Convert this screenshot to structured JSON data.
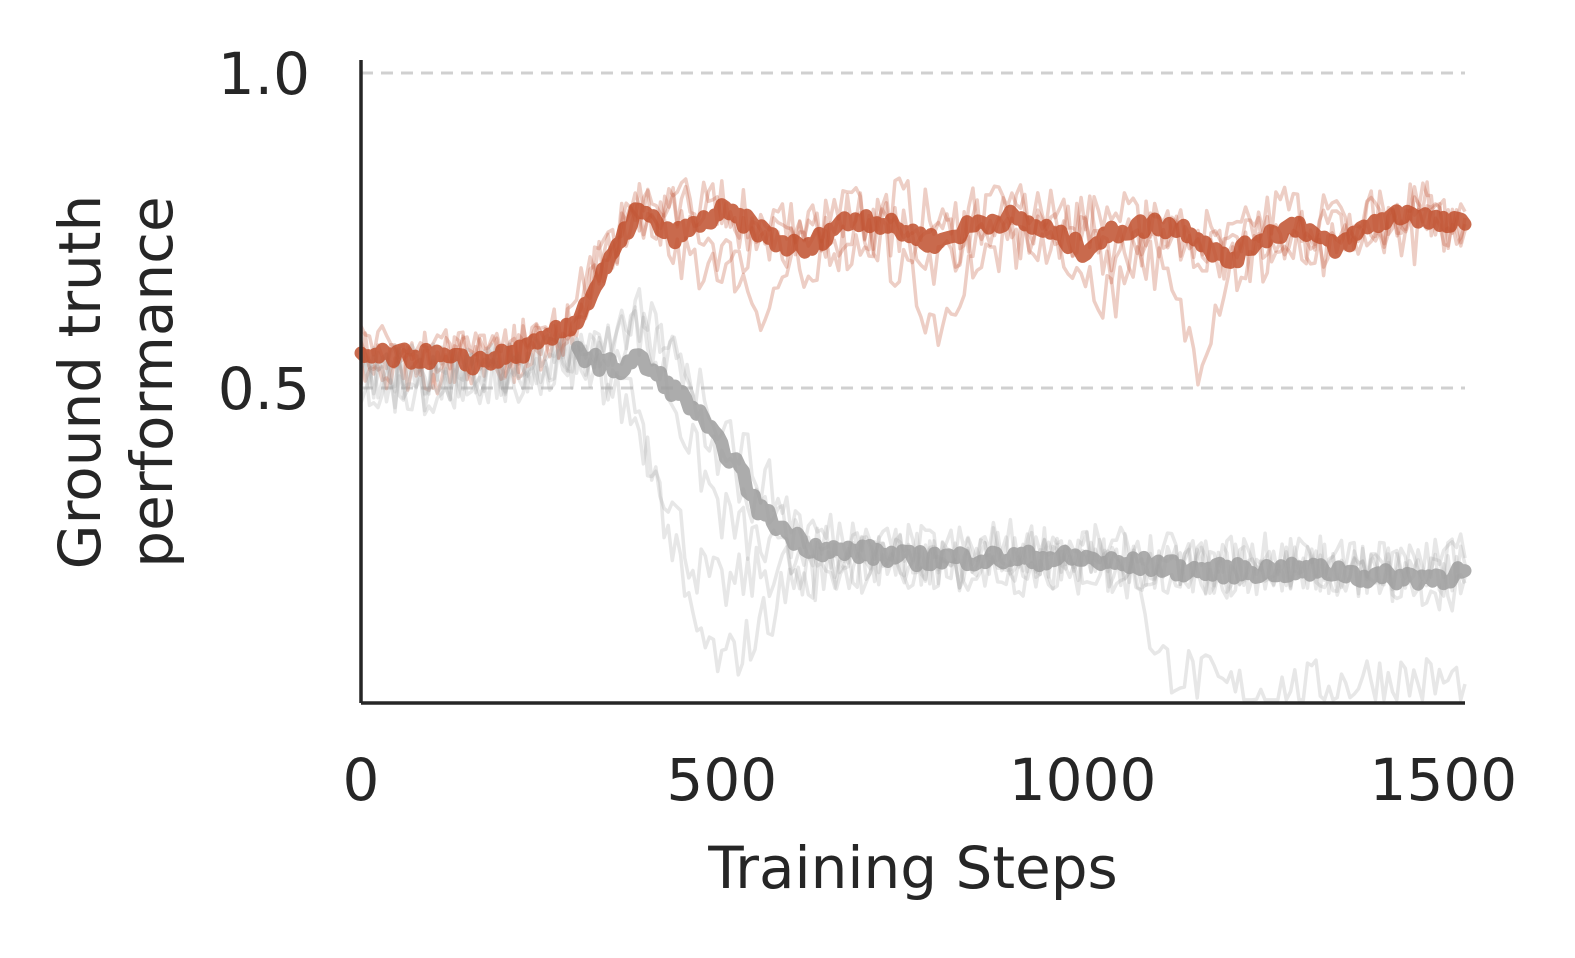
{
  "chart_data": {
    "type": "line",
    "title": "",
    "xlabel": "Training Steps",
    "ylabel_lines": [
      "Ground truth",
      "performance"
    ],
    "xlim": [
      0,
      1530
    ],
    "ylim": [
      0.0,
      1.0
    ],
    "xticks": [
      0,
      500,
      1000,
      1500
    ],
    "xtick_labels": [
      "0",
      "500",
      "1000",
      "1500"
    ],
    "yticks": [
      0.5,
      1.0
    ],
    "ytick_labels": [
      "0.5",
      "1.0"
    ],
    "grid": "horizontal dashed at y ticks",
    "legend": "none",
    "series": [
      {
        "color": "#c0502e",
        "role": "mean",
        "points": [
          [
            0,
            0.55
          ],
          [
            50,
            0.55
          ],
          [
            100,
            0.55
          ],
          [
            150,
            0.54
          ],
          [
            200,
            0.55
          ],
          [
            250,
            0.57
          ],
          [
            300,
            0.61
          ],
          [
            330,
            0.67
          ],
          [
            360,
            0.73
          ],
          [
            380,
            0.78
          ],
          [
            400,
            0.77
          ],
          [
            430,
            0.74
          ],
          [
            470,
            0.76
          ],
          [
            500,
            0.78
          ],
          [
            540,
            0.76
          ],
          [
            580,
            0.73
          ],
          [
            620,
            0.72
          ],
          [
            660,
            0.76
          ],
          [
            700,
            0.77
          ],
          [
            750,
            0.75
          ],
          [
            800,
            0.73
          ],
          [
            850,
            0.76
          ],
          [
            900,
            0.77
          ],
          [
            950,
            0.75
          ],
          [
            1000,
            0.72
          ],
          [
            1050,
            0.75
          ],
          [
            1100,
            0.76
          ],
          [
            1150,
            0.75
          ],
          [
            1200,
            0.7
          ],
          [
            1250,
            0.74
          ],
          [
            1300,
            0.76
          ],
          [
            1350,
            0.72
          ],
          [
            1400,
            0.76
          ],
          [
            1450,
            0.78
          ],
          [
            1500,
            0.76
          ],
          [
            1530,
            0.76
          ]
        ]
      },
      {
        "color": "#9e9e9e",
        "role": "mean",
        "points": [
          [
            300,
            0.56
          ],
          [
            330,
            0.54
          ],
          [
            360,
            0.53
          ],
          [
            380,
            0.55
          ],
          [
            400,
            0.53
          ],
          [
            430,
            0.5
          ],
          [
            460,
            0.47
          ],
          [
            490,
            0.42
          ],
          [
            520,
            0.38
          ],
          [
            550,
            0.31
          ],
          [
            590,
            0.27
          ],
          [
            620,
            0.25
          ],
          [
            660,
            0.24
          ],
          [
            700,
            0.24
          ],
          [
            750,
            0.23
          ],
          [
            800,
            0.23
          ],
          [
            850,
            0.23
          ],
          [
            900,
            0.23
          ],
          [
            950,
            0.23
          ],
          [
            1000,
            0.23
          ],
          [
            1050,
            0.22
          ],
          [
            1100,
            0.22
          ],
          [
            1150,
            0.21
          ],
          [
            1200,
            0.21
          ],
          [
            1250,
            0.21
          ],
          [
            1300,
            0.21
          ],
          [
            1350,
            0.21
          ],
          [
            1400,
            0.2
          ],
          [
            1450,
            0.2
          ],
          [
            1500,
            0.2
          ],
          [
            1530,
            0.21
          ]
        ]
      }
    ],
    "runs": [
      {
        "color": "#c0502e",
        "points": [
          [
            0,
            0.55
          ],
          [
            100,
            0.54
          ],
          [
            200,
            0.55
          ],
          [
            280,
            0.58
          ],
          [
            330,
            0.7
          ],
          [
            380,
            0.79
          ],
          [
            450,
            0.76
          ],
          [
            500,
            0.8
          ],
          [
            560,
            0.74
          ],
          [
            620,
            0.7
          ],
          [
            680,
            0.78
          ],
          [
            740,
            0.75
          ],
          [
            800,
            0.7
          ],
          [
            860,
            0.77
          ],
          [
            920,
            0.79
          ],
          [
            980,
            0.74
          ],
          [
            1040,
            0.7
          ],
          [
            1100,
            0.77
          ],
          [
            1160,
            0.73
          ],
          [
            1220,
            0.7
          ],
          [
            1280,
            0.76
          ],
          [
            1340,
            0.71
          ],
          [
            1400,
            0.77
          ],
          [
            1460,
            0.79
          ],
          [
            1530,
            0.76
          ]
        ]
      },
      {
        "color": "#c0502e",
        "points": [
          [
            0,
            0.56
          ],
          [
            100,
            0.55
          ],
          [
            200,
            0.54
          ],
          [
            280,
            0.57
          ],
          [
            330,
            0.68
          ],
          [
            380,
            0.8
          ],
          [
            450,
            0.71
          ],
          [
            500,
            0.66
          ],
          [
            560,
            0.78
          ],
          [
            620,
            0.74
          ],
          [
            680,
            0.79
          ],
          [
            740,
            0.7
          ],
          [
            800,
            0.6
          ],
          [
            860,
            0.74
          ],
          [
            920,
            0.78
          ],
          [
            980,
            0.72
          ],
          [
            1040,
            0.64
          ],
          [
            1100,
            0.78
          ],
          [
            1160,
            0.7
          ],
          [
            1220,
            0.74
          ],
          [
            1280,
            0.79
          ],
          [
            1340,
            0.75
          ],
          [
            1400,
            0.74
          ],
          [
            1460,
            0.78
          ],
          [
            1530,
            0.78
          ]
        ]
      },
      {
        "color": "#c0502e",
        "points": [
          [
            0,
            0.54
          ],
          [
            100,
            0.56
          ],
          [
            200,
            0.55
          ],
          [
            280,
            0.58
          ],
          [
            330,
            0.72
          ],
          [
            380,
            0.76
          ],
          [
            450,
            0.78
          ],
          [
            500,
            0.72
          ],
          [
            560,
            0.62
          ],
          [
            620,
            0.75
          ],
          [
            680,
            0.72
          ],
          [
            740,
            0.8
          ],
          [
            800,
            0.76
          ],
          [
            860,
            0.7
          ],
          [
            920,
            0.74
          ],
          [
            980,
            0.79
          ],
          [
            1040,
            0.73
          ],
          [
            1100,
            0.7
          ],
          [
            1160,
            0.55
          ],
          [
            1220,
            0.75
          ],
          [
            1280,
            0.72
          ],
          [
            1340,
            0.7
          ],
          [
            1400,
            0.78
          ],
          [
            1460,
            0.74
          ],
          [
            1530,
            0.77
          ]
        ]
      },
      {
        "color": "#c0502e",
        "points": [
          [
            0,
            0.55
          ],
          [
            100,
            0.53
          ],
          [
            200,
            0.56
          ],
          [
            280,
            0.59
          ],
          [
            330,
            0.69
          ],
          [
            380,
            0.77
          ],
          [
            450,
            0.8
          ],
          [
            500,
            0.77
          ],
          [
            560,
            0.76
          ],
          [
            620,
            0.71
          ],
          [
            680,
            0.77
          ],
          [
            740,
            0.73
          ],
          [
            800,
            0.75
          ],
          [
            860,
            0.78
          ],
          [
            920,
            0.72
          ],
          [
            980,
            0.75
          ],
          [
            1040,
            0.78
          ],
          [
            1100,
            0.74
          ],
          [
            1160,
            0.76
          ],
          [
            1220,
            0.68
          ],
          [
            1280,
            0.74
          ],
          [
            1340,
            0.77
          ],
          [
            1400,
            0.72
          ],
          [
            1460,
            0.8
          ],
          [
            1530,
            0.75
          ]
        ]
      },
      {
        "color": "#9e9e9e",
        "points": [
          [
            0,
            0.52
          ],
          [
            100,
            0.52
          ],
          [
            200,
            0.53
          ],
          [
            280,
            0.55
          ],
          [
            330,
            0.52
          ],
          [
            380,
            0.45
          ],
          [
            420,
            0.35
          ],
          [
            460,
            0.22
          ],
          [
            500,
            0.18
          ],
          [
            560,
            0.21
          ],
          [
            620,
            0.22
          ],
          [
            700,
            0.23
          ],
          [
            800,
            0.22
          ],
          [
            900,
            0.23
          ],
          [
            1000,
            0.22
          ],
          [
            1100,
            0.21
          ],
          [
            1200,
            0.22
          ],
          [
            1300,
            0.21
          ],
          [
            1400,
            0.21
          ],
          [
            1530,
            0.22
          ]
        ]
      },
      {
        "color": "#9e9e9e",
        "points": [
          [
            0,
            0.5
          ],
          [
            100,
            0.51
          ],
          [
            200,
            0.52
          ],
          [
            280,
            0.54
          ],
          [
            330,
            0.55
          ],
          [
            380,
            0.6
          ],
          [
            420,
            0.52
          ],
          [
            460,
            0.4
          ],
          [
            500,
            0.3
          ],
          [
            560,
            0.24
          ],
          [
            620,
            0.21
          ],
          [
            700,
            0.22
          ],
          [
            800,
            0.23
          ],
          [
            900,
            0.21
          ],
          [
            1000,
            0.22
          ],
          [
            1080,
            0.2
          ],
          [
            1100,
            0.07
          ],
          [
            1200,
            0.02
          ],
          [
            1300,
            0.02
          ],
          [
            1400,
            0.04
          ],
          [
            1530,
            0.03
          ]
        ]
      },
      {
        "color": "#9e9e9e",
        "points": [
          [
            0,
            0.51
          ],
          [
            100,
            0.53
          ],
          [
            200,
            0.51
          ],
          [
            280,
            0.53
          ],
          [
            330,
            0.55
          ],
          [
            380,
            0.62
          ],
          [
            420,
            0.58
          ],
          [
            460,
            0.48
          ],
          [
            500,
            0.38
          ],
          [
            560,
            0.29
          ],
          [
            620,
            0.25
          ],
          [
            700,
            0.24
          ],
          [
            800,
            0.24
          ],
          [
            900,
            0.25
          ],
          [
            1000,
            0.24
          ],
          [
            1100,
            0.23
          ],
          [
            1200,
            0.21
          ],
          [
            1300,
            0.22
          ],
          [
            1400,
            0.2
          ],
          [
            1530,
            0.19
          ]
        ]
      },
      {
        "color": "#9e9e9e",
        "points": [
          [
            0,
            0.52
          ],
          [
            100,
            0.5
          ],
          [
            200,
            0.52
          ],
          [
            280,
            0.55
          ],
          [
            330,
            0.54
          ],
          [
            380,
            0.48
          ],
          [
            420,
            0.3
          ],
          [
            460,
            0.12
          ],
          [
            500,
            0.06
          ],
          [
            540,
            0.1
          ],
          [
            600,
            0.2
          ],
          [
            700,
            0.22
          ],
          [
            800,
            0.22
          ],
          [
            900,
            0.23
          ],
          [
            1000,
            0.21
          ],
          [
            1100,
            0.22
          ],
          [
            1200,
            0.21
          ],
          [
            1300,
            0.22
          ],
          [
            1400,
            0.21
          ],
          [
            1530,
            0.2
          ]
        ]
      },
      {
        "color": "#9e9e9e",
        "points": [
          [
            0,
            0.53
          ],
          [
            100,
            0.52
          ],
          [
            200,
            0.53
          ],
          [
            280,
            0.55
          ],
          [
            330,
            0.56
          ],
          [
            380,
            0.58
          ],
          [
            440,
            0.55
          ],
          [
            500,
            0.45
          ],
          [
            560,
            0.35
          ],
          [
            620,
            0.27
          ],
          [
            700,
            0.26
          ],
          [
            800,
            0.22
          ],
          [
            900,
            0.24
          ],
          [
            1000,
            0.23
          ],
          [
            1100,
            0.22
          ],
          [
            1200,
            0.23
          ],
          [
            1300,
            0.22
          ],
          [
            1400,
            0.22
          ],
          [
            1530,
            0.23
          ]
        ]
      }
    ]
  }
}
